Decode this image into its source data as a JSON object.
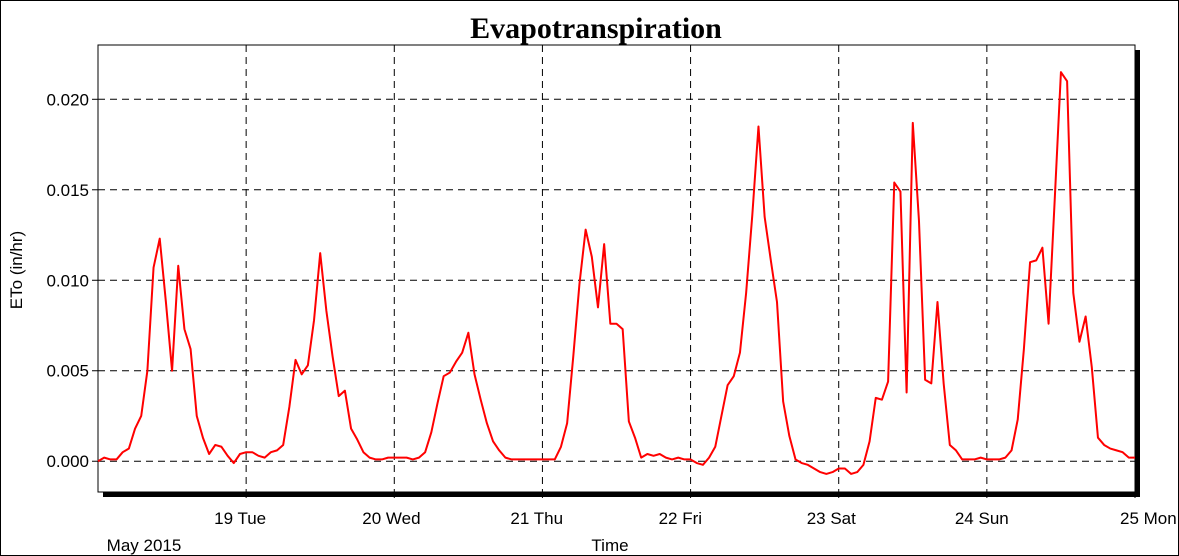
{
  "chart_data": {
    "type": "line",
    "title": "Evapotranspiration",
    "xlabel": "Time",
    "ylabel": "ETo (in/hr)",
    "x_origin_label": "May 2015",
    "x_range_hours": [
      0,
      168
    ],
    "ylim": [
      -0.0017,
      0.023
    ],
    "y_ticks": [
      {
        "value": 0.0,
        "label": "0.000"
      },
      {
        "value": 0.005,
        "label": "0.005"
      },
      {
        "value": 0.01,
        "label": "0.010"
      },
      {
        "value": 0.015,
        "label": "0.015"
      },
      {
        "value": 0.02,
        "label": "0.020"
      }
    ],
    "x_ticks": [
      {
        "hour": 24,
        "label": "19 Tue"
      },
      {
        "hour": 48,
        "label": "20 Wed"
      },
      {
        "hour": 72,
        "label": "21 Thu"
      },
      {
        "hour": 96,
        "label": "22 Fri"
      },
      {
        "hour": 120,
        "label": "23 Sat"
      },
      {
        "hour": 144,
        "label": "24 Sun"
      },
      {
        "hour": 168,
        "label": "25 Mon"
      }
    ],
    "grid": true,
    "line_color": "#ff0000",
    "series": [
      {
        "name": "",
        "points": [
          [
            0,
            0.0
          ],
          [
            1,
            0.0002
          ],
          [
            2,
            0.0001
          ],
          [
            3,
            0.0001
          ],
          [
            4,
            0.0005
          ],
          [
            5,
            0.0007
          ],
          [
            6,
            0.0018
          ],
          [
            7,
            0.0025
          ],
          [
            8,
            0.005
          ],
          [
            9,
            0.0107
          ],
          [
            10,
            0.0123
          ],
          [
            11,
            0.0088
          ],
          [
            12,
            0.005
          ],
          [
            13,
            0.0108
          ],
          [
            14,
            0.0073
          ],
          [
            15,
            0.0062
          ],
          [
            16,
            0.0025
          ],
          [
            17,
            0.0013
          ],
          [
            18,
            0.0004
          ],
          [
            19,
            0.0009
          ],
          [
            20,
            0.0008
          ],
          [
            21,
            0.0003
          ],
          [
            22,
            -0.0001
          ],
          [
            23,
            0.0004
          ],
          [
            24,
            0.0005
          ],
          [
            25,
            0.0005
          ],
          [
            26,
            0.0003
          ],
          [
            27,
            0.0002
          ],
          [
            28,
            0.0005
          ],
          [
            29,
            0.0006
          ],
          [
            30,
            0.0009
          ],
          [
            31,
            0.003
          ],
          [
            32,
            0.0056
          ],
          [
            33,
            0.0048
          ],
          [
            34,
            0.0053
          ],
          [
            35,
            0.0078
          ],
          [
            36,
            0.0115
          ],
          [
            37,
            0.0083
          ],
          [
            38,
            0.0058
          ],
          [
            39,
            0.0036
          ],
          [
            40,
            0.0039
          ],
          [
            41,
            0.0018
          ],
          [
            42,
            0.0012
          ],
          [
            43,
            0.0005
          ],
          [
            44,
            0.0002
          ],
          [
            45,
            0.0001
          ],
          [
            46,
            0.0001
          ],
          [
            47,
            0.0002
          ],
          [
            48,
            0.0002
          ],
          [
            49,
            0.0002
          ],
          [
            50,
            0.0002
          ],
          [
            51,
            0.0001
          ],
          [
            52,
            0.0002
          ],
          [
            53,
            0.0005
          ],
          [
            54,
            0.0016
          ],
          [
            55,
            0.0032
          ],
          [
            56,
            0.0047
          ],
          [
            57,
            0.0049
          ],
          [
            58,
            0.0055
          ],
          [
            59,
            0.006
          ],
          [
            60,
            0.0071
          ],
          [
            61,
            0.0048
          ],
          [
            62,
            0.0034
          ],
          [
            63,
            0.0021
          ],
          [
            64,
            0.0011
          ],
          [
            65,
            0.0006
          ],
          [
            66,
            0.0002
          ],
          [
            67,
            0.0001
          ],
          [
            68,
            0.0001
          ],
          [
            69,
            0.0001
          ],
          [
            70,
            0.0001
          ],
          [
            71,
            0.0001
          ],
          [
            72,
            0.0001
          ],
          [
            73,
            0.0001
          ],
          [
            74,
            0.0001
          ],
          [
            75,
            0.0008
          ],
          [
            76,
            0.0021
          ],
          [
            77,
            0.0058
          ],
          [
            78,
            0.0098
          ],
          [
            79,
            0.0128
          ],
          [
            80,
            0.0113
          ],
          [
            81,
            0.0085
          ],
          [
            82,
            0.012
          ],
          [
            83,
            0.0076
          ],
          [
            84,
            0.0076
          ],
          [
            85,
            0.0073
          ],
          [
            86,
            0.0022
          ],
          [
            87,
            0.0013
          ],
          [
            88,
            0.0002
          ],
          [
            89,
            0.0004
          ],
          [
            90,
            0.0003
          ],
          [
            91,
            0.0004
          ],
          [
            92,
            0.0002
          ],
          [
            93,
            0.0001
          ],
          [
            94,
            0.0002
          ],
          [
            95,
            0.0001
          ],
          [
            96,
            0.0001
          ],
          [
            97,
            -0.0001
          ],
          [
            98,
            -0.0002
          ],
          [
            99,
            0.0002
          ],
          [
            100,
            0.0008
          ],
          [
            101,
            0.0025
          ],
          [
            102,
            0.0042
          ],
          [
            103,
            0.0047
          ],
          [
            104,
            0.006
          ],
          [
            105,
            0.0093
          ],
          [
            106,
            0.0136
          ],
          [
            107,
            0.0185
          ],
          [
            108,
            0.0135
          ],
          [
            109,
            0.0111
          ],
          [
            110,
            0.0088
          ],
          [
            111,
            0.0033
          ],
          [
            112,
            0.0014
          ],
          [
            113,
            0.0001
          ],
          [
            114,
            -0.0001
          ],
          [
            115,
            -0.0002
          ],
          [
            116,
            -0.0004
          ],
          [
            117,
            -0.0006
          ],
          [
            118,
            -0.0007
          ],
          [
            119,
            -0.0006
          ],
          [
            120,
            -0.0004
          ],
          [
            121,
            -0.0004
          ],
          [
            122,
            -0.0007
          ],
          [
            123,
            -0.0006
          ],
          [
            124,
            -0.0002
          ],
          [
            125,
            0.0011
          ],
          [
            126,
            0.0035
          ],
          [
            127,
            0.0034
          ],
          [
            128,
            0.0044
          ],
          [
            129,
            0.0154
          ],
          [
            130,
            0.0149
          ],
          [
            131,
            0.0038
          ],
          [
            132,
            0.0187
          ],
          [
            133,
            0.0133
          ],
          [
            134,
            0.0045
          ],
          [
            135,
            0.0043
          ],
          [
            136,
            0.0088
          ],
          [
            137,
            0.0043
          ],
          [
            138,
            0.0009
          ],
          [
            139,
            0.0006
          ],
          [
            140,
            0.0001
          ],
          [
            141,
            0.0001
          ],
          [
            142,
            0.0001
          ],
          [
            143,
            0.0002
          ],
          [
            144,
            0.0001
          ],
          [
            145,
            0.0001
          ],
          [
            146,
            0.0001
          ],
          [
            147,
            0.0002
          ],
          [
            148,
            0.0006
          ],
          [
            149,
            0.0023
          ],
          [
            150,
            0.0062
          ],
          [
            151,
            0.011
          ],
          [
            152,
            0.0111
          ],
          [
            153,
            0.0118
          ],
          [
            154,
            0.0076
          ],
          [
            155,
            0.0145
          ],
          [
            156,
            0.0215
          ],
          [
            157,
            0.021
          ],
          [
            158,
            0.0093
          ],
          [
            159,
            0.0066
          ],
          [
            160,
            0.008
          ],
          [
            161,
            0.0052
          ],
          [
            162,
            0.0013
          ],
          [
            163,
            0.0009
          ],
          [
            164,
            0.0007
          ],
          [
            165,
            0.0006
          ],
          [
            166,
            0.0005
          ],
          [
            167,
            0.0002
          ],
          [
            168,
            0.0002
          ]
        ]
      }
    ]
  }
}
